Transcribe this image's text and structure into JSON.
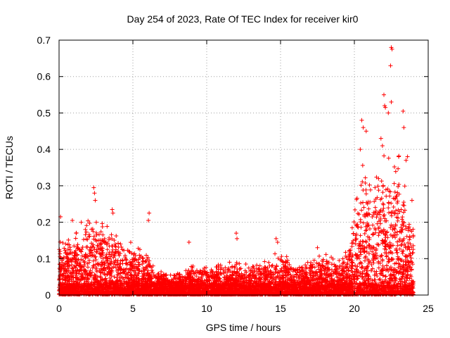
{
  "chart_data": {
    "type": "scatter",
    "title": "Day 254 of 2023, Rate Of TEC Index for receiver kir0",
    "xlabel": "GPS time / hours",
    "ylabel": "ROTI / TECUs",
    "xlim": [
      0,
      25
    ],
    "ylim": [
      0,
      0.7
    ],
    "xticks": [
      0,
      5,
      10,
      15,
      20,
      25
    ],
    "xtick_labels": [
      "0",
      "5",
      "10",
      "15",
      "20",
      "25"
    ],
    "yticks": [
      0,
      0.1,
      0.2,
      0.3,
      0.4,
      0.5,
      0.6,
      0.7
    ],
    "ytick_labels": [
      "0",
      "0.1",
      "0.2",
      "0.3",
      "0.4",
      "0.5",
      "0.6",
      "0.7"
    ],
    "grid": true,
    "marker": "+",
    "color": "#ff0000",
    "x_data_range": [
      0,
      24
    ],
    "envelope": {
      "description": "approximate upper envelope of the point cloud",
      "x": [
        0,
        0.5,
        1,
        1.5,
        2,
        2.5,
        3,
        3.5,
        4,
        4.5,
        5,
        5.5,
        6,
        6.5,
        7,
        7.5,
        8,
        8.5,
        9,
        9.5,
        10,
        10.5,
        11,
        11.5,
        12,
        12.5,
        13,
        13.5,
        14,
        14.5,
        15,
        15.5,
        16,
        16.5,
        17,
        17.5,
        18,
        18.5,
        19,
        19.5,
        20,
        20.5,
        21,
        21.5,
        22,
        22.5,
        23,
        23.5,
        24
      ],
      "y": [
        0.13,
        0.13,
        0.15,
        0.16,
        0.17,
        0.19,
        0.16,
        0.15,
        0.13,
        0.12,
        0.12,
        0.1,
        0.09,
        0.06,
        0.05,
        0.05,
        0.05,
        0.06,
        0.07,
        0.06,
        0.07,
        0.07,
        0.07,
        0.07,
        0.09,
        0.07,
        0.07,
        0.07,
        0.08,
        0.09,
        0.1,
        0.08,
        0.07,
        0.07,
        0.08,
        0.09,
        0.1,
        0.09,
        0.08,
        0.1,
        0.2,
        0.3,
        0.28,
        0.28,
        0.32,
        0.35,
        0.3,
        0.22,
        0.15
      ]
    },
    "points": [
      {
        "x": 0.1,
        "y": 0.215
      },
      {
        "x": 0.9,
        "y": 0.205
      },
      {
        "x": 2.35,
        "y": 0.295
      },
      {
        "x": 2.4,
        "y": 0.28
      },
      {
        "x": 2.45,
        "y": 0.26
      },
      {
        "x": 3.6,
        "y": 0.235
      },
      {
        "x": 3.65,
        "y": 0.225
      },
      {
        "x": 6.1,
        "y": 0.225
      },
      {
        "x": 6.05,
        "y": 0.205
      },
      {
        "x": 8.8,
        "y": 0.145
      },
      {
        "x": 12.0,
        "y": 0.17
      },
      {
        "x": 12.05,
        "y": 0.155
      },
      {
        "x": 14.7,
        "y": 0.155
      },
      {
        "x": 14.8,
        "y": 0.145
      },
      {
        "x": 17.5,
        "y": 0.13
      },
      {
        "x": 20.5,
        "y": 0.48
      },
      {
        "x": 20.6,
        "y": 0.46
      },
      {
        "x": 20.8,
        "y": 0.45
      },
      {
        "x": 20.4,
        "y": 0.4
      },
      {
        "x": 21.8,
        "y": 0.43
      },
      {
        "x": 21.9,
        "y": 0.41
      },
      {
        "x": 22.0,
        "y": 0.55
      },
      {
        "x": 22.05,
        "y": 0.52
      },
      {
        "x": 22.1,
        "y": 0.515
      },
      {
        "x": 22.5,
        "y": 0.68
      },
      {
        "x": 22.55,
        "y": 0.675
      },
      {
        "x": 22.45,
        "y": 0.63
      },
      {
        "x": 22.5,
        "y": 0.53
      },
      {
        "x": 22.3,
        "y": 0.5
      },
      {
        "x": 23.3,
        "y": 0.505
      },
      {
        "x": 23.35,
        "y": 0.46
      },
      {
        "x": 23.0,
        "y": 0.38
      },
      {
        "x": 23.5,
        "y": 0.37
      },
      {
        "x": 23.6,
        "y": 0.38
      },
      {
        "x": 23.9,
        "y": 0.26
      }
    ]
  }
}
